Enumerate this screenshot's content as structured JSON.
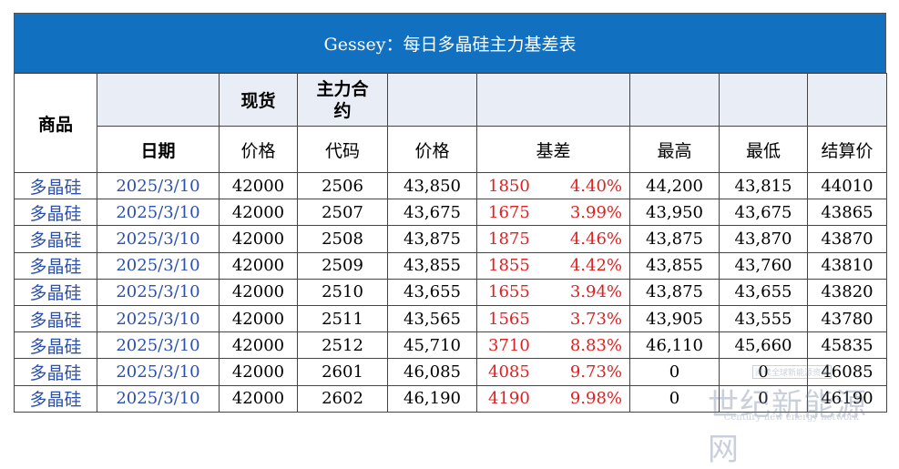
{
  "title": "Gessey：每日多晶硅主力基差表",
  "header": {
    "product": "商品",
    "date": "日期",
    "spot": "现货",
    "spot_price": "价格",
    "main_contract": "主力合约",
    "contract_code": "代码",
    "price": "价格",
    "basis": "基差",
    "high": "最高",
    "low": "最低",
    "settle": "结算价"
  },
  "rows": [
    {
      "product": "多晶硅",
      "date": "2025/3/10",
      "spot": "42000",
      "code": "2506",
      "price": "43,850",
      "basis": "1850",
      "basis_pct": "4.40%",
      "high": "44,200",
      "low": "43,815",
      "settle": "44010"
    },
    {
      "product": "多晶硅",
      "date": "2025/3/10",
      "spot": "42000",
      "code": "2507",
      "price": "43,675",
      "basis": "1675",
      "basis_pct": "3.99%",
      "high": "43,950",
      "low": "43,675",
      "settle": "43865"
    },
    {
      "product": "多晶硅",
      "date": "2025/3/10",
      "spot": "42000",
      "code": "2508",
      "price": "43,875",
      "basis": "1875",
      "basis_pct": "4.46%",
      "high": "43,875",
      "low": "43,870",
      "settle": "43870"
    },
    {
      "product": "多晶硅",
      "date": "2025/3/10",
      "spot": "42000",
      "code": "2509",
      "price": "43,855",
      "basis": "1855",
      "basis_pct": "4.42%",
      "high": "43,855",
      "low": "43,760",
      "settle": "43810"
    },
    {
      "product": "多晶硅",
      "date": "2025/3/10",
      "spot": "42000",
      "code": "2510",
      "price": "43,655",
      "basis": "1655",
      "basis_pct": "3.94%",
      "high": "43,875",
      "low": "43,655",
      "settle": "43820"
    },
    {
      "product": "多晶硅",
      "date": "2025/3/10",
      "spot": "42000",
      "code": "2511",
      "price": "43,565",
      "basis": "1565",
      "basis_pct": "3.73%",
      "high": "43,905",
      "low": "43,555",
      "settle": "43780"
    },
    {
      "product": "多晶硅",
      "date": "2025/3/10",
      "spot": "42000",
      "code": "2512",
      "price": "45,710",
      "basis": "3710",
      "basis_pct": "8.83%",
      "high": "46,110",
      "low": "45,660",
      "settle": "45835"
    },
    {
      "product": "多晶硅",
      "date": "2025/3/10",
      "spot": "42000",
      "code": "2601",
      "price": "46,085",
      "basis": "4085",
      "basis_pct": "9.73%",
      "high": "0",
      "low": "0",
      "settle": "46085"
    },
    {
      "product": "多晶硅",
      "date": "2025/3/10",
      "spot": "42000",
      "code": "2602",
      "price": "46,190",
      "basis": "4190",
      "basis_pct": "9.98%",
      "high": "0",
      "low": "0",
      "settle": "46190"
    }
  ],
  "watermark": {
    "main": "世纪新能源网",
    "sub": "Century new energy network",
    "tag": "阅读全球新能源资讯"
  }
}
